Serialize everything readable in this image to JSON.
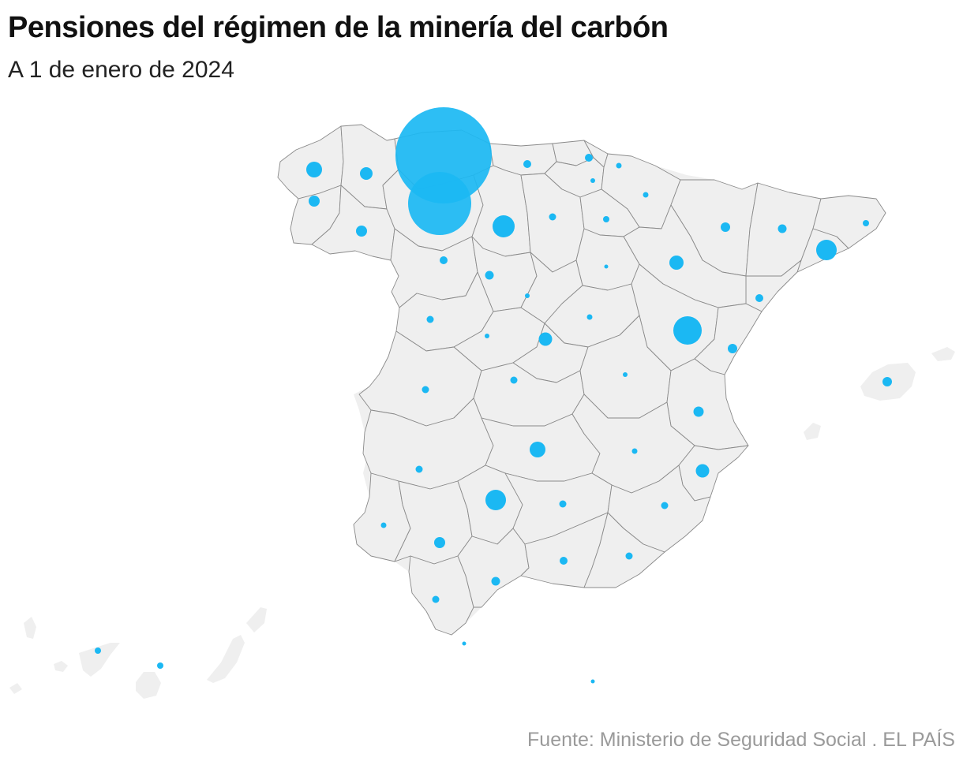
{
  "title": "Pensiones del régimen de la minería del carbón",
  "subtitle": "A 1 de enero de 2024",
  "source": "Fuente: Ministerio de Seguridad Social . EL PAÍS",
  "colors": {
    "bubble": "#1bb8f3",
    "land": "#efefef",
    "border": "#8a8a8a"
  },
  "map": {
    "type": "proportional-symbol",
    "region": "España (provincias)",
    "symbol_color": "#1bb8f3"
  }
}
